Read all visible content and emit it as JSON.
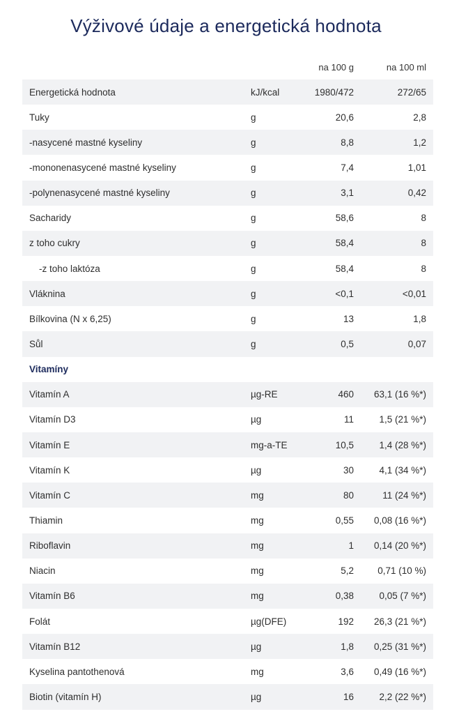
{
  "title": "Výživové údaje a energetická hodnota",
  "columns": {
    "per_100g": "na 100 g",
    "per_100ml": "na 100 ml"
  },
  "rows": [
    {
      "name": "Energetická hodnota",
      "unit": "kJ/kcal",
      "per_100g": "1980/472",
      "per_100ml": "272/65"
    },
    {
      "name": "Tuky",
      "unit": "g",
      "per_100g": "20,6",
      "per_100ml": "2,8"
    },
    {
      "name": "-nasycené mastné kyseliny",
      "unit": "g",
      "per_100g": "8,8",
      "per_100ml": "1,2"
    },
    {
      "name": "-mononenasycené mastné kyseliny",
      "unit": "g",
      "per_100g": "7,4",
      "per_100ml": "1,01"
    },
    {
      "name": "-polynenasycené mastné kyseliny",
      "unit": "g",
      "per_100g": "3,1",
      "per_100ml": "0,42"
    },
    {
      "name": "Sacharidy",
      "unit": "g",
      "per_100g": "58,6",
      "per_100ml": "8"
    },
    {
      "name": "z toho cukry",
      "unit": "g",
      "per_100g": "58,4",
      "per_100ml": "8"
    },
    {
      "name": "-z toho laktóza",
      "unit": "g",
      "per_100g": "58,4",
      "per_100ml": "8",
      "indent": true
    },
    {
      "name": "Vláknina",
      "unit": "g",
      "per_100g": "<0,1",
      "per_100ml": "<0,01"
    },
    {
      "name": "Bílkovina (N x 6,25)",
      "unit": "g",
      "per_100g": "13",
      "per_100ml": "1,8"
    },
    {
      "name": "Sůl",
      "unit": "g",
      "per_100g": "0,5",
      "per_100ml": "0,07"
    },
    {
      "name": "Vitamíny",
      "unit": "",
      "per_100g": "",
      "per_100ml": "",
      "section": true
    },
    {
      "name": "Vitamín A",
      "unit": "µg-RE",
      "per_100g": "460",
      "per_100ml": "63,1 (16 %*)"
    },
    {
      "name": "Vitamín D3",
      "unit": "µg",
      "per_100g": "11",
      "per_100ml": "1,5 (21 %*)"
    },
    {
      "name": "Vitamín E",
      "unit": "mg-a-TE",
      "per_100g": "10,5",
      "per_100ml": "1,4 (28 %*)"
    },
    {
      "name": "Vitamín K",
      "unit": "µg",
      "per_100g": "30",
      "per_100ml": "4,1 (34 %*)"
    },
    {
      "name": "Vitamín C",
      "unit": "mg",
      "per_100g": "80",
      "per_100ml": "11 (24 %*)"
    },
    {
      "name": "Thiamin",
      "unit": "mg",
      "per_100g": "0,55",
      "per_100ml": "0,08 (16 %*)"
    },
    {
      "name": "Riboflavin",
      "unit": "mg",
      "per_100g": "1",
      "per_100ml": "0,14 (20 %*)"
    },
    {
      "name": "Niacin",
      "unit": "mg",
      "per_100g": "5,2",
      "per_100ml": "0,71 (10 %)"
    },
    {
      "name": "Vitamín B6",
      "unit": "mg",
      "per_100g": "0,38",
      "per_100ml": "0,05 (7 %*)"
    },
    {
      "name": "Folát",
      "unit": "µg(DFE)",
      "per_100g": "192",
      "per_100ml": "26,3 (21 %*)"
    },
    {
      "name": "Vitamín B12",
      "unit": "µg",
      "per_100g": "1,8",
      "per_100ml": "0,25 (31 %*)"
    },
    {
      "name": "Kyselina pantothenová",
      "unit": "mg",
      "per_100g": "3,6",
      "per_100ml": "0,49 (16 %*)"
    },
    {
      "name": "Biotin (vitamín H)",
      "unit": "µg",
      "per_100g": "16",
      "per_100ml": "2,2 (22 %*)"
    }
  ]
}
